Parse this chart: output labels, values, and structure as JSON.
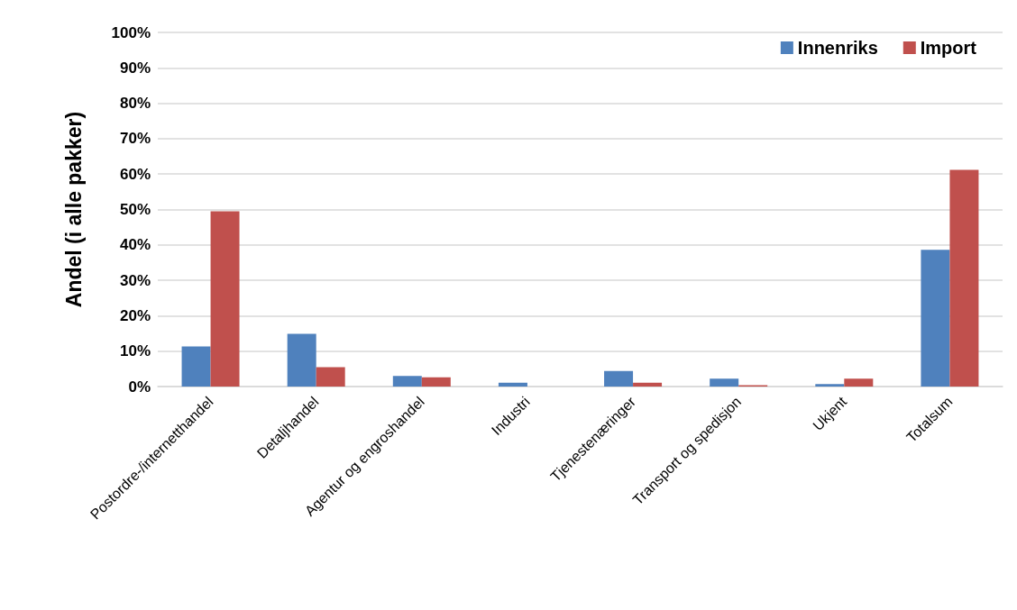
{
  "chart_data": {
    "type": "bar",
    "ylabel": "Andel (i alle pakker)",
    "categories": [
      "Postordre-/internetthandel",
      "Detaljhandel",
      "Agentur og engroshandel",
      "Industri",
      "Tjenestenæringer",
      "Transport og spedisjon",
      "Ukjent",
      "Totalsum"
    ],
    "series": [
      {
        "name": "Innenriks",
        "color": "#4f81bd",
        "values": [
          11.3,
          14.9,
          3.0,
          1.1,
          4.4,
          2.2,
          0.7,
          38.6
        ]
      },
      {
        "name": "Import",
        "color": "#c0504d",
        "values": [
          49.5,
          5.5,
          2.6,
          0,
          1.1,
          0.4,
          2.2,
          61.2
        ]
      }
    ],
    "ylim": [
      0,
      100
    ],
    "yticks": [
      {
        "value": 0,
        "label": "0%"
      },
      {
        "value": 10,
        "label": "10%"
      },
      {
        "value": 20,
        "label": "20%"
      },
      {
        "value": 30,
        "label": "30%"
      },
      {
        "value": 40,
        "label": "40%"
      },
      {
        "value": 50,
        "label": "50%"
      },
      {
        "value": 60,
        "label": "60%"
      },
      {
        "value": 70,
        "label": "70%"
      },
      {
        "value": 80,
        "label": "80%"
      },
      {
        "value": 90,
        "label": "90%"
      },
      {
        "value": 100,
        "label": "100%"
      }
    ],
    "grid": "y",
    "legend": "top right"
  }
}
